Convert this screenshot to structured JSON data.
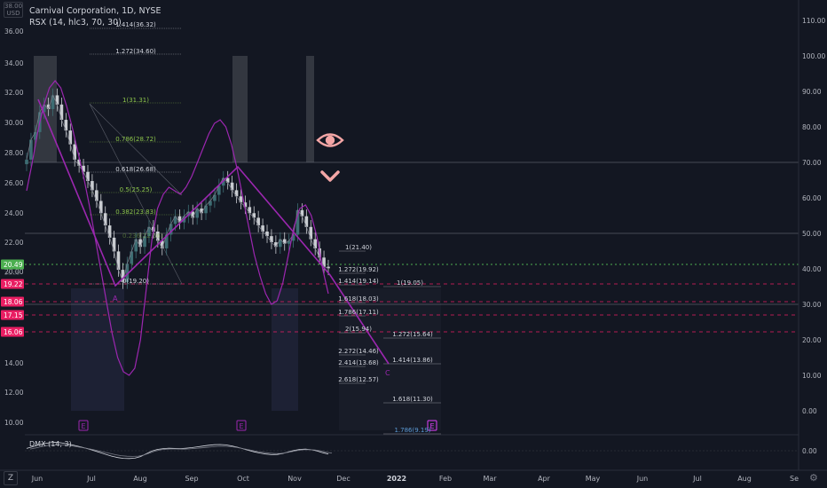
{
  "header": {
    "symbol_title": "Carnival Corporation, 1D, NYSE",
    "indicator_label": "RSX (14, hlc3, 70, 30)",
    "currency": "USD",
    "top_value": "38.00"
  },
  "toolbar": {
    "zoom_label": "Z",
    "settings_icon": "gear-icon"
  },
  "colors": {
    "background": "#131722",
    "candle_up": "#3d6d73",
    "candle_down": "#c9ccd1",
    "wave": "#9c27b0",
    "rsx": "#9c27b0",
    "fib_white": "#d1d4dc",
    "fib_green": "#8bc34a",
    "current_price_bg": "#4caf50",
    "pink_label_bg": "#e91e63",
    "eye_icon": "#f4a6a6"
  },
  "chart_data": {
    "type": "line",
    "title": "Carnival Corporation, 1D, NYSE",
    "price_axis": {
      "ticks": [
        "36.00",
        "34.00",
        "32.00",
        "30.00",
        "28.00",
        "26.00",
        "24.00",
        "22.00",
        "20.00",
        "14.00",
        "12.00",
        "10.00"
      ],
      "markers": [
        {
          "label": "20.49",
          "type": "current_price"
        },
        {
          "label": "19.22",
          "type": "level"
        },
        {
          "label": "18.06",
          "type": "level"
        },
        {
          "label": "17.15",
          "type": "level"
        },
        {
          "label": "16.06",
          "type": "level"
        }
      ]
    },
    "indicator_axis": {
      "ticks": [
        "110.00",
        "100.00",
        "90.00",
        "80.00",
        "70.00",
        "60.00",
        "50.00",
        "40.00",
        "30.00",
        "20.00",
        "10.00",
        "0.00"
      ]
    },
    "dmx_axis": {
      "ticks": [
        "0.00"
      ]
    },
    "x_axis": {
      "ticks": [
        "Jun",
        "Jul",
        "Aug",
        "Sep",
        "Oct",
        "Nov",
        "Dec",
        "2022",
        "Feb",
        "Mar",
        "Apr",
        "May",
        "Jun",
        "Jul",
        "Aug",
        "Se"
      ]
    },
    "series": [
      {
        "name": "RSX (14, hlc3, 70, 30)",
        "values": [
          62,
          70,
          79,
          86,
          91,
          93,
          91,
          86,
          80,
          73,
          66,
          58,
          49,
          40,
          31,
          22,
          15,
          11,
          10,
          12,
          20,
          34,
          48,
          57,
          61,
          63,
          62,
          61,
          63,
          66,
          70,
          74,
          78,
          81,
          82,
          80,
          75,
          68,
          60,
          52,
          44,
          38,
          33,
          30,
          31,
          36,
          44,
          52,
          57,
          58,
          55,
          49,
          40,
          33
        ]
      }
    ],
    "price_series": {
      "name": "Carnival Corporation",
      "close": [
        27.6,
        28.9,
        29.4,
        30.7,
        31.2,
        30.9,
        31.8,
        31.2,
        30.2,
        29.5,
        28.6,
        27.6,
        27.2,
        26.8,
        26.2,
        25.6,
        24.9,
        24.1,
        23.3,
        22.5,
        21.6,
        20.4,
        19.6,
        20.8,
        21.6,
        22.4,
        21.9,
        22.6,
        23.2,
        22.9,
        22.3,
        21.8,
        22.7,
        23.4,
        23.9,
        23.5,
        23.9,
        24.2,
        23.8,
        24.4,
        24.1,
        24.6,
        24.9,
        25.3,
        25.9,
        26.4,
        26.1,
        25.6,
        25.2,
        24.8,
        24.5,
        24.1,
        23.8,
        23.3,
        22.9,
        22.6,
        22.2,
        21.9,
        22.4,
        22.1,
        22.3,
        22.7,
        24.3,
        23.9,
        23.2,
        22.4,
        21.8,
        21.2,
        20.6,
        20.5
      ]
    },
    "wave_labels": [
      "A",
      "C"
    ],
    "fib_levels_upper": [
      {
        "label": "1.414(36.32)",
        "color": "white"
      },
      {
        "label": "1.272(34.60)",
        "color": "white"
      },
      {
        "label": "1(31.31)",
        "color": "green"
      },
      {
        "label": "0.786(28.72)",
        "color": "green"
      },
      {
        "label": "0.618(26.68)",
        "color": "white"
      },
      {
        "label": "0.5(25.25)",
        "color": "green"
      },
      {
        "label": "0.382(23.83)",
        "color": "green"
      },
      {
        "label": "0(19.20)",
        "color": "white"
      }
    ],
    "fib_levels_lower": [
      {
        "label": "1(21.40)"
      },
      {
        "label": "1.272(19.92)"
      },
      {
        "label": "1.414(19.14)"
      },
      {
        "label": "1(19.05)"
      },
      {
        "label": "1.618(18.03)"
      },
      {
        "label": "1.786(17.11)"
      },
      {
        "label": "2(15.94)"
      },
      {
        "label": "1.272(15.64)"
      },
      {
        "label": "2.272(14.46)"
      },
      {
        "label": "2.414(13.68)"
      },
      {
        "label": "1.414(13.86)"
      },
      {
        "label": "2.618(12.57)"
      },
      {
        "label": "1.618(11.30)"
      },
      {
        "label": "1.786(9.19)"
      }
    ],
    "hidden_tick": "26.00",
    "obscured_label": "0.236(22.06)",
    "dmx_label": "DMX (14, 3)",
    "event_markers": [
      "E",
      "E",
      "E"
    ],
    "grid": false,
    "legend": "top-left"
  }
}
